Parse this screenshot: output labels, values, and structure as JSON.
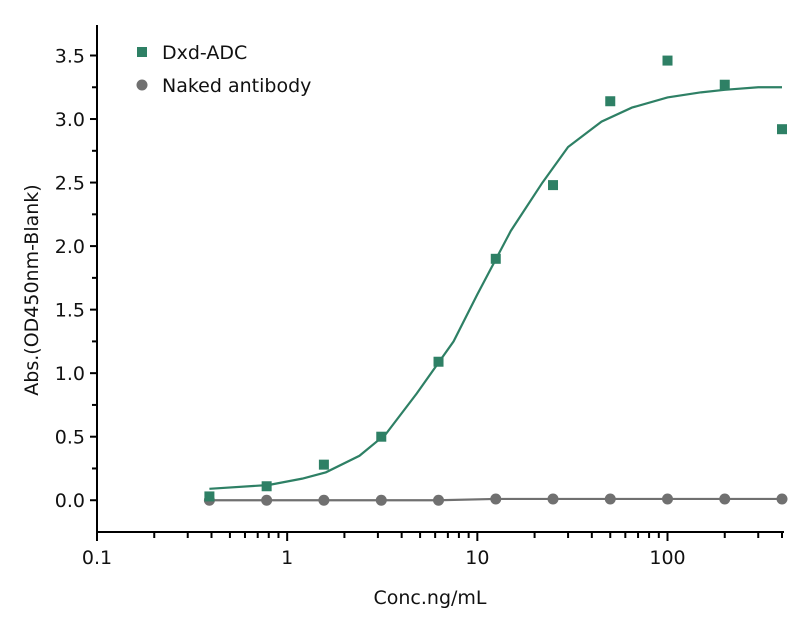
{
  "chart_data": {
    "type": "scatter",
    "xlabel": "Conc.ng/mL",
    "ylabel": "Abs.(OD450nm-Blank)",
    "xscale": "log",
    "xlim": [
      0.1,
      400
    ],
    "ylim": [
      -0.25,
      3.74
    ],
    "xticks": [
      0.1,
      1,
      10,
      100
    ],
    "xtick_labels": [
      "0.1",
      "1",
      "10",
      "100"
    ],
    "yticks": [
      0.0,
      0.5,
      1.0,
      1.5,
      2.0,
      2.5,
      3.0,
      3.5
    ],
    "ytick_labels": [
      "0.0",
      "0.5",
      "1.0",
      "1.5",
      "2.0",
      "2.5",
      "3.0",
      "3.5"
    ],
    "grid": false,
    "legend_position": "top-left",
    "series": [
      {
        "name": "Dxd-ADC",
        "marker": "square",
        "color": "#2e8065",
        "x": [
          0.39,
          0.78,
          1.56,
          3.125,
          6.25,
          12.5,
          25,
          50,
          100,
          200,
          400
        ],
        "y": [
          0.03,
          0.11,
          0.28,
          0.5,
          1.09,
          1.9,
          2.48,
          3.14,
          3.46,
          3.27,
          2.92
        ],
        "fit": {
          "x": [
            0.39,
            0.8,
            1.2,
            1.6,
            2.4,
            3.3,
            4.8,
            7.5,
            10,
            15,
            22,
            30,
            45,
            65,
            100,
            150,
            200,
            300,
            400
          ],
          "y": [
            0.09,
            0.12,
            0.17,
            0.22,
            0.35,
            0.52,
            0.84,
            1.25,
            1.62,
            2.12,
            2.5,
            2.78,
            2.98,
            3.09,
            3.17,
            3.21,
            3.23,
            3.25,
            3.25
          ]
        }
      },
      {
        "name": "Naked antibody",
        "marker": "circle",
        "color": "#707070",
        "x": [
          0.39,
          0.78,
          1.56,
          3.125,
          6.25,
          12.5,
          25,
          50,
          100,
          200,
          400
        ],
        "y": [
          0.0,
          0.0,
          0.0,
          0.0,
          0.0,
          0.01,
          0.01,
          0.01,
          0.01,
          0.01,
          0.01
        ]
      }
    ]
  }
}
